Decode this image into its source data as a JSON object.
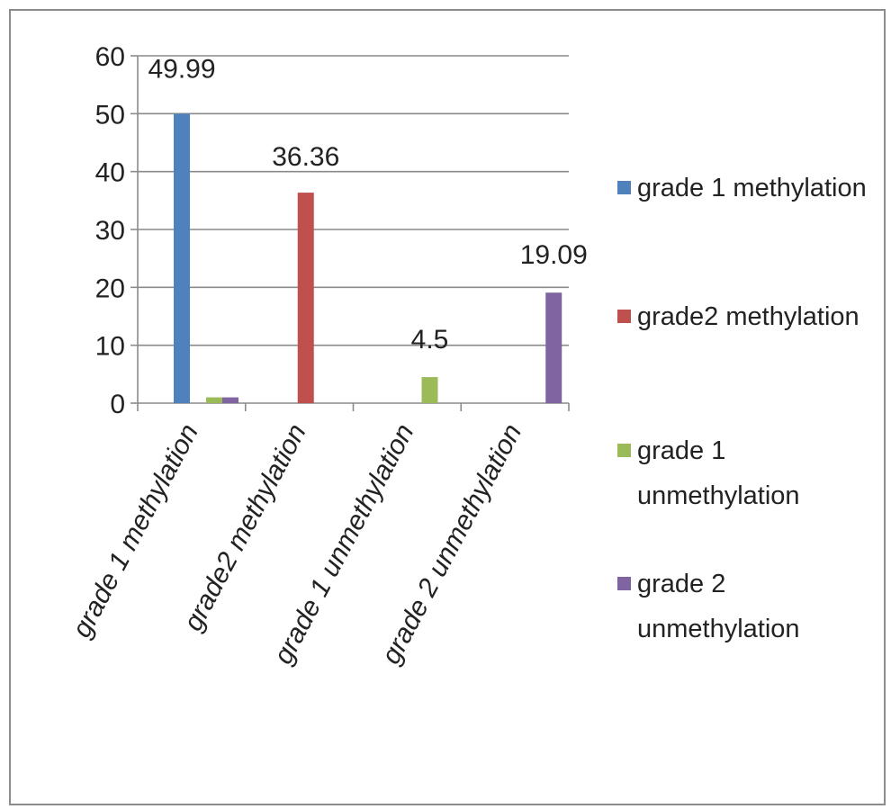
{
  "chart_data": {
    "type": "bar",
    "categories": [
      "grade 1 methylation",
      "grade2 methylation",
      "grade 1 unmethylation",
      "grade 2 unmethylation"
    ],
    "series": [
      {
        "name": "grade 1 methylation",
        "color": "#4f81bd",
        "values": [
          49.99,
          0,
          0,
          0
        ]
      },
      {
        "name": "grade2 methylation",
        "color": "#c0504d",
        "values": [
          0,
          36.36,
          0,
          0
        ]
      },
      {
        "name": "grade 1 unmethylation",
        "color": "#9bbb59",
        "values": [
          1,
          0,
          4.5,
          0
        ]
      },
      {
        "name": "grade 2 unmethylation",
        "color": "#8064a2",
        "values": [
          1,
          0,
          0,
          19.09
        ]
      }
    ],
    "data_labels": [
      "49.99",
      "36.36",
      "4.5",
      "19.09"
    ],
    "y_ticks": [
      "0",
      "10",
      "20",
      "30",
      "40",
      "50",
      "60"
    ],
    "ylim": [
      0,
      60
    ],
    "grid": true,
    "legend_position": "right",
    "legend_lines": [
      [
        "grade 1 methylation"
      ],
      [
        "grade2 methylation"
      ],
      [
        "grade 1",
        "unmethylation"
      ],
      [
        "grade 2",
        "unmethylation"
      ]
    ]
  }
}
